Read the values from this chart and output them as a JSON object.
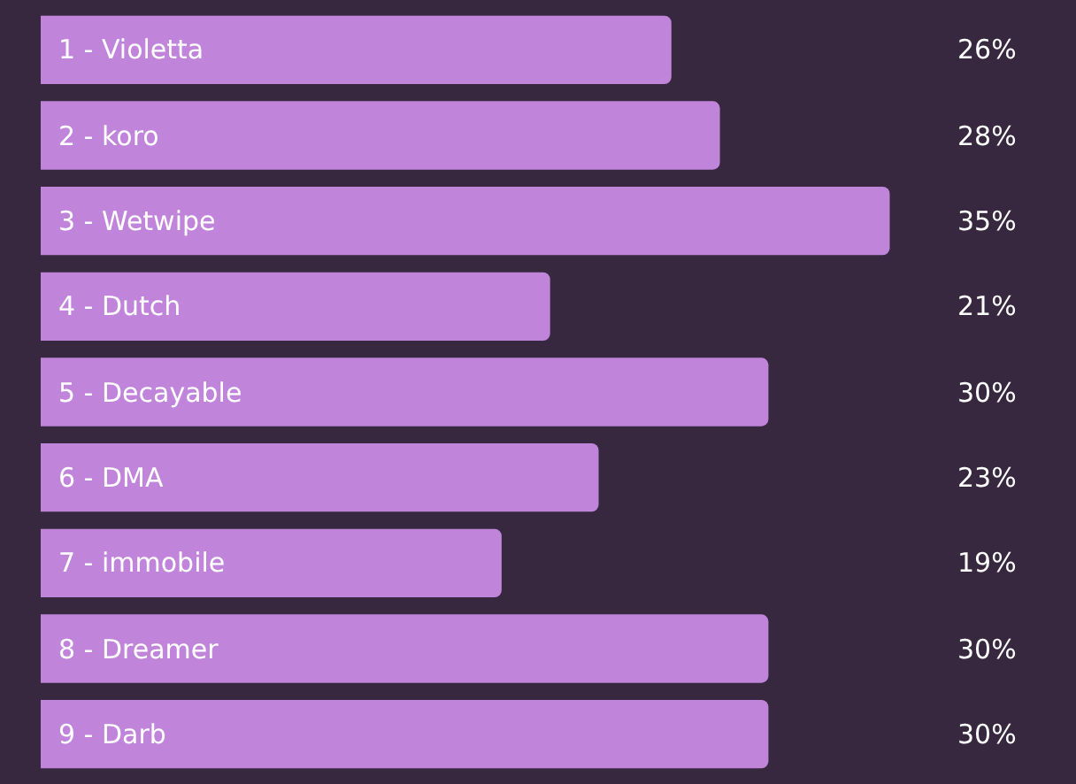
{
  "chart_data": {
    "type": "bar",
    "orientation": "horizontal",
    "categories": [
      "1 - Violetta",
      "2 - koro",
      "3 - Wetwipe",
      "4 - Dutch",
      "5 - Decayable",
      "6 - DMA",
      "7 - immobile",
      "8 - Dreamer",
      "9 - Darb"
    ],
    "values": [
      26,
      28,
      35,
      21,
      30,
      23,
      19,
      30,
      30
    ],
    "value_labels": [
      "26%",
      "28%",
      "35%",
      "21%",
      "30%",
      "23%",
      "19%",
      "30%",
      "30%"
    ],
    "color": "#c084da"
  }
}
